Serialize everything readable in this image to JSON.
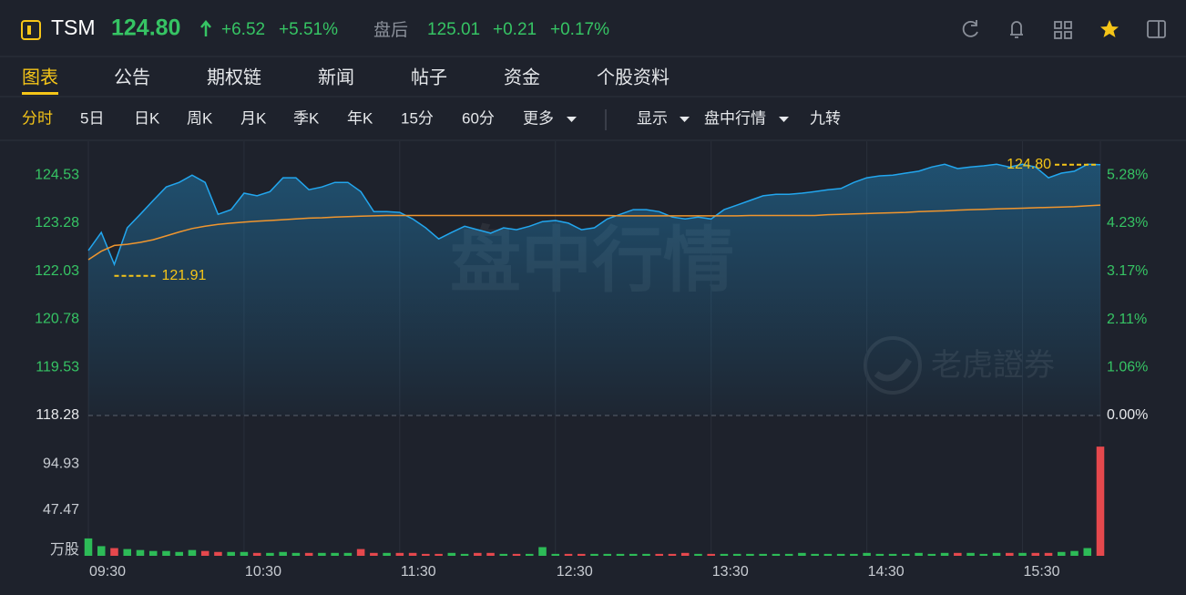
{
  "header": {
    "symbol": "TSM",
    "price": "124.80",
    "change": "+6.52",
    "change_pct": "+5.51%",
    "after_label": "盘后",
    "after_price": "125.01",
    "after_change": "+0.21",
    "after_pct": "+0.17%"
  },
  "tabs": [
    "图表",
    "公告",
    "期权链",
    "新闻",
    "帖子",
    "资金",
    "个股资料"
  ],
  "periods": [
    "分时",
    "5日",
    "日K",
    "周K",
    "月K",
    "季K",
    "年K",
    "15分",
    "60分",
    "更多"
  ],
  "options": [
    "显示",
    "盘中行情",
    "九转"
  ],
  "chart_data": {
    "type": "line",
    "watermark": "盘中行情",
    "brand": "老虎證券",
    "x": [
      "09:30",
      "09:35",
      "09:40",
      "09:45",
      "09:50",
      "09:55",
      "10:00",
      "10:05",
      "10:10",
      "10:15",
      "10:20",
      "10:25",
      "10:30",
      "10:35",
      "10:40",
      "10:45",
      "10:50",
      "10:55",
      "11:00",
      "11:05",
      "11:10",
      "11:15",
      "11:20",
      "11:25",
      "11:30",
      "11:35",
      "11:40",
      "11:45",
      "11:50",
      "11:55",
      "12:00",
      "12:05",
      "12:10",
      "12:15",
      "12:20",
      "12:25",
      "12:30",
      "12:35",
      "12:40",
      "12:45",
      "12:50",
      "12:55",
      "13:00",
      "13:05",
      "13:10",
      "13:15",
      "13:20",
      "13:25",
      "13:30",
      "13:35",
      "13:40",
      "13:45",
      "13:50",
      "13:55",
      "14:00",
      "14:05",
      "14:10",
      "14:15",
      "14:20",
      "14:25",
      "14:30",
      "14:35",
      "14:40",
      "14:45",
      "14:50",
      "14:55",
      "15:00",
      "15:05",
      "15:10",
      "15:15",
      "15:20",
      "15:25",
      "15:30",
      "15:35",
      "15:40",
      "15:45",
      "15:50",
      "15:55",
      "16:00"
    ],
    "series": [
      {
        "color": "#22a6ee",
        "values": [
          122.57,
          123.04,
          122.21,
          123.16,
          123.51,
          123.87,
          124.22,
          124.34,
          124.53,
          124.34,
          123.51,
          123.63,
          124.06,
          123.99,
          124.1,
          124.46,
          124.46,
          124.15,
          124.22,
          124.34,
          124.34,
          124.1,
          123.58,
          123.58,
          123.56,
          123.39,
          123.16,
          122.87,
          123.04,
          123.2,
          123.11,
          123.02,
          123.16,
          123.11,
          123.2,
          123.32,
          123.35,
          123.28,
          123.11,
          123.16,
          123.39,
          123.51,
          123.63,
          123.63,
          123.58,
          123.44,
          123.39,
          123.44,
          123.39,
          123.63,
          123.75,
          123.87,
          123.99,
          124.03,
          124.03,
          124.06,
          124.1,
          124.15,
          124.18,
          124.34,
          124.46,
          124.51,
          124.53,
          124.58,
          124.63,
          124.74,
          124.81,
          124.7,
          124.74,
          124.77,
          124.81,
          124.74,
          124.81,
          124.74,
          124.46,
          124.58,
          124.63,
          124.81,
          124.8
        ]
      },
      {
        "color": "#f0962e",
        "values": [
          122.33,
          122.55,
          122.7,
          122.73,
          122.78,
          122.85,
          122.95,
          123.05,
          123.14,
          123.2,
          123.25,
          123.28,
          123.31,
          123.33,
          123.35,
          123.37,
          123.39,
          123.41,
          123.42,
          123.44,
          123.45,
          123.46,
          123.47,
          123.48,
          123.48,
          123.48,
          123.48,
          123.48,
          123.48,
          123.48,
          123.48,
          123.48,
          123.48,
          123.48,
          123.48,
          123.48,
          123.48,
          123.48,
          123.48,
          123.48,
          123.48,
          123.47,
          123.47,
          123.47,
          123.47,
          123.47,
          123.47,
          123.47,
          123.47,
          123.47,
          123.47,
          123.48,
          123.48,
          123.48,
          123.48,
          123.48,
          123.48,
          123.5,
          123.51,
          123.52,
          123.53,
          123.54,
          123.55,
          123.56,
          123.58,
          123.59,
          123.6,
          123.62,
          123.63,
          123.64,
          123.65,
          123.66,
          123.67,
          123.68,
          123.69,
          123.7,
          123.71,
          123.73,
          123.75
        ]
      }
    ],
    "ylim": [
      118.28,
      125.41
    ],
    "yticks": [
      118.28,
      119.53,
      120.78,
      122.03,
      123.28,
      124.53
    ],
    "y2lim": [
      0,
      6.03
    ],
    "y2ticks": [
      {
        "value": 0,
        "label": "0.00%"
      },
      {
        "value": 1.06,
        "label": "1.06%"
      },
      {
        "value": 2.11,
        "label": "2.11%"
      },
      {
        "value": 3.17,
        "label": "3.17%"
      },
      {
        "value": 4.23,
        "label": "4.23%"
      },
      {
        "value": 5.28,
        "label": "5.28%"
      }
    ],
    "xticks": [
      "09:30",
      "10:30",
      "11:30",
      "12:30",
      "13:30",
      "14:30",
      "15:30"
    ],
    "annotations": [
      {
        "x": "09:40",
        "value": 121.91
      },
      {
        "x": "16:00",
        "value": 124.8,
        "label": "124.80"
      }
    ],
    "volume": {
      "values": [
        18,
        10,
        8,
        7,
        6,
        5,
        5,
        4,
        6,
        5,
        4,
        4,
        4,
        3,
        3,
        4,
        3,
        3,
        3,
        3,
        3,
        7,
        3,
        3,
        3,
        3,
        2,
        2,
        3,
        2,
        3,
        3,
        2,
        2,
        2,
        9,
        2,
        2,
        2,
        2,
        2,
        2,
        2,
        2,
        2,
        2,
        3,
        2,
        2,
        2,
        2,
        2,
        2,
        2,
        2,
        3,
        2,
        2,
        2,
        2,
        3,
        2,
        2,
        2,
        3,
        2,
        3,
        3,
        3,
        2,
        3,
        3,
        3,
        3,
        3,
        4,
        5,
        8,
        113
      ],
      "ylim": [
        0,
        132
      ],
      "yticks": [
        {
          "value": 0,
          "label": "万股"
        },
        47.47,
        94.93
      ],
      "up_color": "#2dbb57",
      "down_color": "#e5484d"
    }
  }
}
